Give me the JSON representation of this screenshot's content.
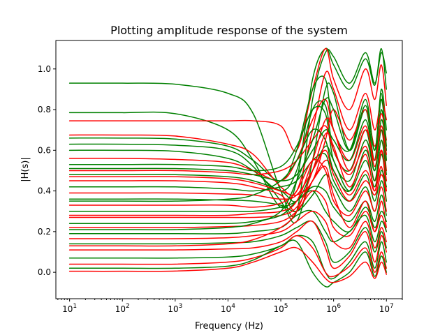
{
  "chart_data": {
    "type": "line",
    "title": "Plotting amplitude response of the system",
    "xlabel": "Frequency (Hz)",
    "ylabel": "|H(s)|",
    "xscale": "log",
    "xlim": [
      5.5,
      20000000
    ],
    "ylim": [
      -0.13,
      1.14
    ],
    "grid": false,
    "legend": "none",
    "x_ticks": [
      {
        "base": "10",
        "exp": "1",
        "value": 10
      },
      {
        "base": "10",
        "exp": "2",
        "value": 100
      },
      {
        "base": "10",
        "exp": "3",
        "value": 1000
      },
      {
        "base": "10",
        "exp": "4",
        "value": 10000
      },
      {
        "base": "10",
        "exp": "5",
        "value": 100000
      },
      {
        "base": "10",
        "exp": "6",
        "value": 1000000
      },
      {
        "base": "10",
        "exp": "7",
        "value": 10000000
      }
    ],
    "y_ticks": [
      {
        "label": "0.0",
        "value": 0.0
      },
      {
        "label": "0.2",
        "value": 0.2
      },
      {
        "label": "0.4",
        "value": 0.4
      },
      {
        "label": "0.6",
        "value": 0.6
      },
      {
        "label": "0.8",
        "value": 0.8
      },
      {
        "label": "1.0",
        "value": 1.0
      }
    ],
    "colors": {
      "green": "#008000",
      "red": "#ff0000"
    },
    "x": [
      10,
      100,
      1000,
      10000,
      30000,
      100000,
      200000,
      400000,
      700000,
      1000000,
      2000000,
      4000000,
      6000000,
      8000000,
      10000000
    ],
    "series": [
      {
        "color": "green",
        "values": [
          0.93,
          0.93,
          0.925,
          0.88,
          0.78,
          0.4,
          0.3,
          0.85,
          1.08,
          1.06,
          0.93,
          1.08,
          0.93,
          1.08,
          0.98
        ]
      },
      {
        "color": "green",
        "values": [
          0.785,
          0.785,
          0.78,
          0.7,
          0.55,
          0.32,
          0.45,
          0.95,
          1.1,
          1.02,
          0.9,
          1.05,
          0.92,
          1.1,
          0.9
        ]
      },
      {
        "color": "red",
        "values": [
          0.745,
          0.745,
          0.745,
          0.745,
          0.745,
          0.72,
          0.6,
          0.9,
          1.1,
          0.95,
          0.8,
          1.0,
          0.85,
          1.02,
          0.82
        ]
      },
      {
        "color": "green",
        "values": [
          0.66,
          0.66,
          0.655,
          0.62,
          0.55,
          0.45,
          0.6,
          0.9,
          0.95,
          0.7,
          0.6,
          0.85,
          0.6,
          0.9,
          0.7
        ]
      },
      {
        "color": "red",
        "values": [
          0.675,
          0.675,
          0.67,
          0.63,
          0.58,
          0.42,
          0.4,
          0.7,
          0.98,
          0.9,
          0.7,
          0.88,
          0.7,
          0.85,
          0.75
        ]
      },
      {
        "color": "green",
        "values": [
          0.63,
          0.63,
          0.625,
          0.6,
          0.52,
          0.35,
          0.25,
          0.55,
          0.9,
          0.88,
          0.6,
          0.8,
          0.55,
          0.88,
          0.55
        ]
      },
      {
        "color": "green",
        "values": [
          0.6,
          0.6,
          0.595,
          0.56,
          0.5,
          0.4,
          0.5,
          0.8,
          0.82,
          0.6,
          0.5,
          0.7,
          0.5,
          0.75,
          0.6
        ]
      },
      {
        "color": "red",
        "values": [
          0.56,
          0.56,
          0.555,
          0.54,
          0.5,
          0.45,
          0.55,
          0.75,
          0.85,
          0.7,
          0.55,
          0.72,
          0.52,
          0.7,
          0.5
        ]
      },
      {
        "color": "green",
        "values": [
          0.53,
          0.53,
          0.53,
          0.52,
          0.5,
          0.52,
          0.62,
          0.8,
          0.78,
          0.55,
          0.45,
          0.65,
          0.5,
          0.7,
          0.55
        ]
      },
      {
        "color": "red",
        "values": [
          0.5,
          0.5,
          0.5,
          0.49,
          0.48,
          0.5,
          0.55,
          0.65,
          0.72,
          0.6,
          0.48,
          0.62,
          0.45,
          0.6,
          0.4
        ]
      },
      {
        "color": "green",
        "values": [
          0.48,
          0.48,
          0.48,
          0.47,
          0.45,
          0.4,
          0.35,
          0.5,
          0.62,
          0.55,
          0.4,
          0.55,
          0.42,
          0.58,
          0.45
        ]
      },
      {
        "color": "red",
        "values": [
          0.45,
          0.45,
          0.45,
          0.44,
          0.42,
          0.38,
          0.3,
          0.45,
          0.55,
          0.5,
          0.38,
          0.5,
          0.4,
          0.52,
          0.35
        ]
      },
      {
        "color": "green",
        "values": [
          0.42,
          0.42,
          0.42,
          0.41,
          0.4,
          0.42,
          0.45,
          0.55,
          0.58,
          0.45,
          0.35,
          0.48,
          0.35,
          0.5,
          0.42
        ]
      },
      {
        "color": "red",
        "values": [
          0.39,
          0.39,
          0.39,
          0.385,
          0.38,
          0.36,
          0.38,
          0.5,
          0.6,
          0.48,
          0.35,
          0.45,
          0.38,
          0.48,
          0.4
        ]
      },
      {
        "color": "green",
        "values": [
          0.36,
          0.36,
          0.36,
          0.355,
          0.35,
          0.33,
          0.3,
          0.38,
          0.48,
          0.42,
          0.3,
          0.42,
          0.3,
          0.45,
          0.35
        ]
      },
      {
        "color": "red",
        "values": [
          0.33,
          0.33,
          0.33,
          0.33,
          0.32,
          0.34,
          0.4,
          0.55,
          0.5,
          0.35,
          0.28,
          0.4,
          0.3,
          0.42,
          0.3
        ]
      },
      {
        "color": "green",
        "values": [
          0.3,
          0.3,
          0.3,
          0.3,
          0.3,
          0.32,
          0.35,
          0.42,
          0.4,
          0.32,
          0.25,
          0.35,
          0.25,
          0.38,
          0.28
        ]
      },
      {
        "color": "red",
        "values": [
          0.27,
          0.27,
          0.27,
          0.27,
          0.27,
          0.28,
          0.32,
          0.45,
          0.52,
          0.38,
          0.22,
          0.35,
          0.2,
          0.35,
          0.22
        ]
      },
      {
        "color": "green",
        "values": [
          0.24,
          0.24,
          0.24,
          0.24,
          0.25,
          0.28,
          0.35,
          0.4,
          0.3,
          0.25,
          0.2,
          0.32,
          0.22,
          0.3,
          0.25
        ]
      },
      {
        "color": "red",
        "values": [
          0.22,
          0.22,
          0.22,
          0.225,
          0.23,
          0.25,
          0.3,
          0.4,
          0.35,
          0.22,
          0.18,
          0.3,
          0.2,
          0.28,
          0.2
        ]
      },
      {
        "color": "green",
        "values": [
          0.19,
          0.19,
          0.19,
          0.19,
          0.2,
          0.22,
          0.28,
          0.3,
          0.2,
          0.15,
          0.2,
          0.28,
          0.15,
          0.25,
          0.2
        ]
      },
      {
        "color": "red",
        "values": [
          0.165,
          0.165,
          0.165,
          0.17,
          0.18,
          0.2,
          0.25,
          0.3,
          0.25,
          0.15,
          0.12,
          0.25,
          0.12,
          0.22,
          0.15
        ]
      },
      {
        "color": "green",
        "values": [
          0.14,
          0.14,
          0.14,
          0.145,
          0.15,
          0.18,
          0.22,
          0.25,
          0.15,
          0.05,
          0.1,
          0.22,
          0.1,
          0.2,
          0.12
        ]
      },
      {
        "color": "red",
        "values": [
          0.11,
          0.11,
          0.11,
          0.115,
          0.12,
          0.15,
          0.2,
          0.25,
          0.12,
          0.02,
          0.08,
          0.2,
          0.05,
          0.18,
          0.1
        ]
      },
      {
        "color": "green",
        "values": [
          0.07,
          0.07,
          0.07,
          0.075,
          0.09,
          0.13,
          0.18,
          0.15,
          0.0,
          -0.03,
          0.05,
          0.15,
          0.02,
          0.15,
          0.05
        ]
      },
      {
        "color": "red",
        "values": [
          0.04,
          0.04,
          0.04,
          0.05,
          0.07,
          0.12,
          0.18,
          0.12,
          0.0,
          -0.02,
          0.03,
          0.12,
          0.0,
          0.1,
          0.02
        ]
      },
      {
        "color": "green",
        "values": [
          0.02,
          0.02,
          0.02,
          0.03,
          0.06,
          0.13,
          0.15,
          0.0,
          -0.07,
          -0.05,
          0.0,
          0.1,
          -0.02,
          0.08,
          0.0
        ]
      },
      {
        "color": "red",
        "values": [
          0.005,
          0.005,
          0.006,
          0.02,
          0.05,
          0.1,
          0.12,
          0.05,
          -0.03,
          -0.05,
          -0.02,
          0.05,
          -0.03,
          0.05,
          -0.01
        ]
      },
      {
        "color": "green",
        "values": [
          0.51,
          0.51,
          0.51,
          0.5,
          0.48,
          0.45,
          0.48,
          0.6,
          0.7,
          0.65,
          0.55,
          0.75,
          0.55,
          0.8,
          0.6
        ]
      },
      {
        "color": "red",
        "values": [
          0.28,
          0.28,
          0.28,
          0.28,
          0.29,
          0.3,
          0.35,
          0.55,
          0.75,
          0.7,
          0.5,
          0.7,
          0.55,
          0.72,
          0.58
        ]
      },
      {
        "color": "green",
        "values": [
          0.35,
          0.35,
          0.35,
          0.36,
          0.38,
          0.45,
          0.55,
          0.7,
          0.65,
          0.5,
          0.4,
          0.6,
          0.45,
          0.65,
          0.48
        ]
      },
      {
        "color": "red",
        "values": [
          0.47,
          0.47,
          0.47,
          0.46,
          0.44,
          0.4,
          0.38,
          0.45,
          0.65,
          0.8,
          0.65,
          0.8,
          0.62,
          0.78,
          0.65
        ]
      },
      {
        "color": "green",
        "values": [
          0.21,
          0.21,
          0.21,
          0.22,
          0.24,
          0.3,
          0.45,
          0.65,
          0.85,
          0.8,
          0.6,
          0.82,
          0.6,
          0.85,
          0.62
        ]
      },
      {
        "color": "red",
        "values": [
          0.13,
          0.13,
          0.13,
          0.14,
          0.16,
          0.22,
          0.3,
          0.5,
          0.68,
          0.62,
          0.42,
          0.58,
          0.4,
          0.6,
          0.45
        ]
      }
    ]
  }
}
